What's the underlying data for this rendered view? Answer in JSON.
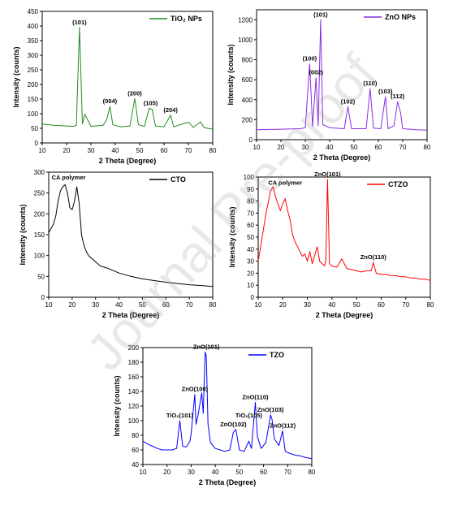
{
  "watermark": "Journal Pre-proof",
  "chart_data": [
    {
      "type": "line",
      "legend": "TiO₂ NPs",
      "color": "#228b22",
      "xlabel": "2 Theta (Degree)",
      "ylabel": "Intensity (counts)",
      "xlim": [
        10,
        80
      ],
      "ylim": [
        0,
        450
      ],
      "xticks": [
        10,
        20,
        30,
        40,
        50,
        60,
        70,
        80
      ],
      "yticks": [
        0,
        50,
        100,
        150,
        200,
        250,
        300,
        350,
        400,
        450
      ],
      "x": [
        10,
        15,
        20,
        23,
        24,
        25.3,
        26.5,
        27.5,
        30,
        35,
        36.5,
        37.8,
        39,
        42,
        46,
        48,
        49.5,
        52,
        53.9,
        55.1,
        56.5,
        60,
        62.7,
        64,
        68.8,
        70.3,
        72,
        75,
        76.5,
        78,
        80
      ],
      "y": [
        65,
        60,
        58,
        57,
        60,
        395,
        65,
        98,
        57,
        60,
        80,
        125,
        62,
        55,
        58,
        152,
        62,
        57,
        118,
        115,
        58,
        55,
        95,
        55,
        68,
        70,
        53,
        72,
        52,
        50,
        47
      ],
      "annotations": [
        {
          "x": 25.3,
          "y": 395,
          "text": "(101)"
        },
        {
          "x": 37.8,
          "y": 125,
          "text": "(004)"
        },
        {
          "x": 48,
          "y": 152,
          "text": "(200)"
        },
        {
          "x": 54.5,
          "y": 118,
          "text": "(105)"
        },
        {
          "x": 62.7,
          "y": 95,
          "text": "(204)"
        }
      ]
    },
    {
      "type": "line",
      "legend": "ZnO NPs",
      "color": "#8a2be2",
      "xlabel": "2 Theta (Degree)",
      "ylabel": "Intensity (counts)",
      "xlim": [
        10,
        80
      ],
      "ylim": [
        0,
        1300
      ],
      "xticks": [
        10,
        20,
        30,
        40,
        50,
        60,
        70,
        80
      ],
      "yticks": [
        0,
        200,
        400,
        600,
        800,
        1000,
        1200
      ],
      "x": [
        10,
        20,
        28,
        30,
        31.8,
        33,
        34.4,
        35.3,
        36.3,
        37.2,
        40,
        46,
        47.5,
        49,
        55,
        56.6,
        58,
        61,
        62.9,
        64,
        66.4,
        67.9,
        69.1,
        70,
        75,
        80
      ],
      "y": [
        100,
        105,
        110,
        120,
        760,
        130,
        620,
        140,
        1200,
        150,
        120,
        110,
        330,
        110,
        110,
        510,
        115,
        110,
        430,
        110,
        140,
        380,
        270,
        110,
        100,
        95
      ],
      "annotations": [
        {
          "x": 36.3,
          "y": 1200,
          "text": "(101)"
        },
        {
          "x": 34.4,
          "y": 620,
          "text": "(002)"
        },
        {
          "x": 31.8,
          "y": 760,
          "text": "(100)"
        },
        {
          "x": 47.5,
          "y": 330,
          "text": "(102)"
        },
        {
          "x": 56.6,
          "y": 510,
          "text": "(110)"
        },
        {
          "x": 62.9,
          "y": 430,
          "text": "(103)"
        },
        {
          "x": 67.9,
          "y": 380,
          "text": "(112)"
        }
      ]
    },
    {
      "type": "line",
      "legend": "CTO",
      "color": "#000000",
      "xlabel": "2 Theta (Degree)",
      "ylabel": "Intensity (counts)",
      "xlim": [
        10,
        80
      ],
      "ylim": [
        0,
        300
      ],
      "xticks": [
        10,
        20,
        30,
        40,
        50,
        60,
        70,
        80
      ],
      "yticks": [
        0,
        50,
        100,
        150,
        200,
        250,
        300
      ],
      "x": [
        10,
        11,
        12,
        13,
        14,
        15,
        16,
        17,
        18,
        19,
        20,
        21,
        22,
        23,
        24,
        25,
        26,
        27,
        28,
        30,
        32,
        35,
        40,
        45,
        50,
        55,
        60,
        65,
        70,
        75,
        80
      ],
      "y": [
        155,
        165,
        175,
        195,
        230,
        255,
        265,
        270,
        250,
        215,
        210,
        230,
        265,
        225,
        150,
        125,
        110,
        100,
        95,
        85,
        75,
        70,
        58,
        50,
        44,
        40,
        36,
        33,
        30,
        28,
        26
      ],
      "annotations": [
        {
          "x": 18.5,
          "y": 275,
          "text": "CA  polymer"
        }
      ]
    },
    {
      "type": "line",
      "legend": "CTZO",
      "color": "#ff0000",
      "xlabel": "2 Theta (Degree)",
      "ylabel": "Intensity (counts)",
      "xlim": [
        10,
        80
      ],
      "ylim": [
        0,
        100
      ],
      "xticks": [
        10,
        20,
        30,
        40,
        50,
        60,
        70,
        80
      ],
      "yticks": [
        0,
        10,
        20,
        30,
        40,
        50,
        60,
        70,
        80,
        90,
        100
      ],
      "x": [
        10,
        11,
        12,
        13,
        14,
        15,
        16,
        17,
        18,
        19,
        20,
        21,
        22,
        23,
        24,
        25,
        26,
        27,
        28,
        29,
        30,
        31,
        32,
        33,
        34,
        35,
        36,
        37,
        37.5,
        38.2,
        39,
        40,
        42,
        44,
        46,
        48,
        50,
        52,
        54,
        56,
        56.8,
        58,
        60,
        62,
        64,
        66,
        68,
        70,
        72,
        74,
        76,
        78,
        80
      ],
      "y": [
        30,
        42,
        55,
        68,
        78,
        88,
        92,
        84,
        78,
        72,
        78,
        82,
        72,
        64,
        52,
        46,
        42,
        38,
        34,
        36,
        30,
        38,
        28,
        35,
        42,
        30,
        28,
        26,
        30,
        98,
        28,
        26,
        25,
        32,
        24,
        23,
        22,
        21,
        22,
        22,
        29,
        20,
        19,
        19,
        18,
        18,
        17,
        17,
        16,
        16,
        15,
        15,
        14
      ],
      "annotations": [
        {
          "x": 21,
          "y": 91,
          "text": "CA polymer"
        },
        {
          "x": 38.2,
          "y": 98,
          "text": "ZnO(101)"
        },
        {
          "x": 56.8,
          "y": 29,
          "text": "ZnO(110)"
        }
      ]
    },
    {
      "type": "line",
      "legend": "TZO",
      "color": "#0000ff",
      "xlabel": "2 Theta (Degree)",
      "ylabel": "Intensity (counts)",
      "xlim": [
        10,
        80
      ],
      "ylim": [
        40,
        200
      ],
      "xticks": [
        10,
        20,
        30,
        40,
        50,
        60,
        70,
        80
      ],
      "yticks": [
        40,
        60,
        80,
        100,
        120,
        140,
        160,
        180,
        200
      ],
      "x": [
        10,
        12,
        14,
        16,
        18,
        20,
        22,
        24,
        25.3,
        26.5,
        28,
        29.5,
        30,
        31.5,
        32,
        33,
        34.4,
        35,
        35.8,
        36.3,
        37,
        38,
        40,
        42,
        44,
        46,
        47.5,
        48.5,
        50,
        52,
        53.9,
        55,
        56.6,
        57.5,
        59,
        61,
        62.9,
        63.5,
        64.5,
        66.4,
        67.9,
        69,
        71,
        73,
        75,
        77,
        80
      ],
      "y": [
        72,
        68,
        65,
        62,
        60,
        60,
        60,
        62,
        100,
        65,
        64,
        72,
        82,
        136,
        95,
        110,
        138,
        110,
        194,
        188,
        95,
        70,
        62,
        60,
        58,
        60,
        84,
        88,
        60,
        58,
        72,
        62,
        125,
        78,
        62,
        70,
        108,
        102,
        75,
        66,
        86,
        58,
        55,
        53,
        52,
        50,
        48
      ],
      "annotations": [
        {
          "x": 36.3,
          "y": 194,
          "text": "ZnO(101)"
        },
        {
          "x": 31.5,
          "y": 136,
          "text": "ZnO(100)"
        },
        {
          "x": 25.3,
          "y": 100,
          "text": "TiO₂(101)"
        },
        {
          "x": 47.5,
          "y": 88,
          "text": "ZnO(102)"
        },
        {
          "x": 53.9,
          "y": 100,
          "text": "TiO₂(105)"
        },
        {
          "x": 56.6,
          "y": 125,
          "text": "ZnO(110)"
        },
        {
          "x": 62.9,
          "y": 108,
          "text": "ZnO(103)"
        },
        {
          "x": 67.9,
          "y": 86,
          "text": "ZnO(112)"
        }
      ]
    }
  ]
}
